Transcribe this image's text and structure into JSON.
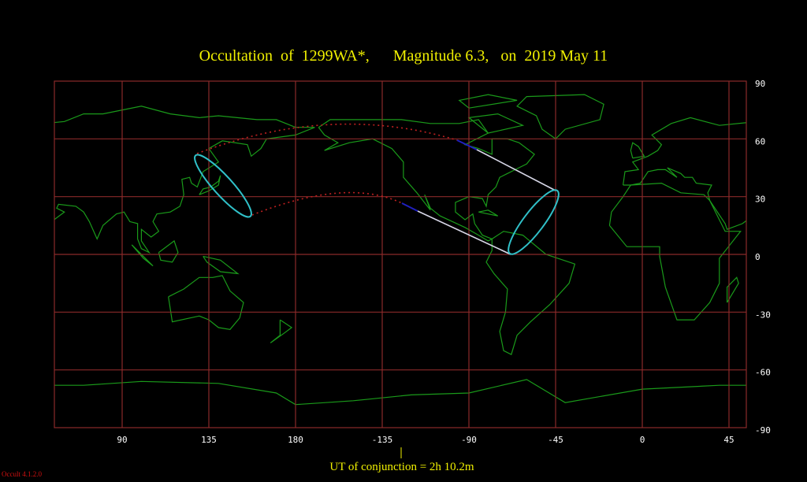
{
  "chart_data": {
    "type": "map",
    "title": "Occultation  of  1299WA*,      Magnitude 6.3,   on  2019 May 11",
    "projection": "equirectangular",
    "x_ticks": [
      "90",
      "135",
      "180",
      "-135",
      "-90",
      "-45",
      "0",
      "45"
    ],
    "x_tick_values": [
      90,
      135,
      180,
      -135,
      -90,
      -45,
      0,
      45
    ],
    "y_ticks": [
      "90",
      "60",
      "30",
      "0",
      "-30",
      "-60",
      "-90"
    ],
    "y_tick_values": [
      90,
      60,
      30,
      0,
      -30,
      -60,
      -90
    ],
    "grid": true,
    "colors": {
      "grid": "#8a2a2a",
      "coast": "#1a9a1a",
      "limb": "#30c0c8",
      "path_visible": "#d8d8e8",
      "path_twilight": "#2020c0",
      "path_invisible": "#c02020",
      "title": "#f0f000"
    },
    "annotation": "UT of conjunction =  2h 10.2m"
  },
  "footer": {
    "version": "Occult 4.1.2.0"
  }
}
